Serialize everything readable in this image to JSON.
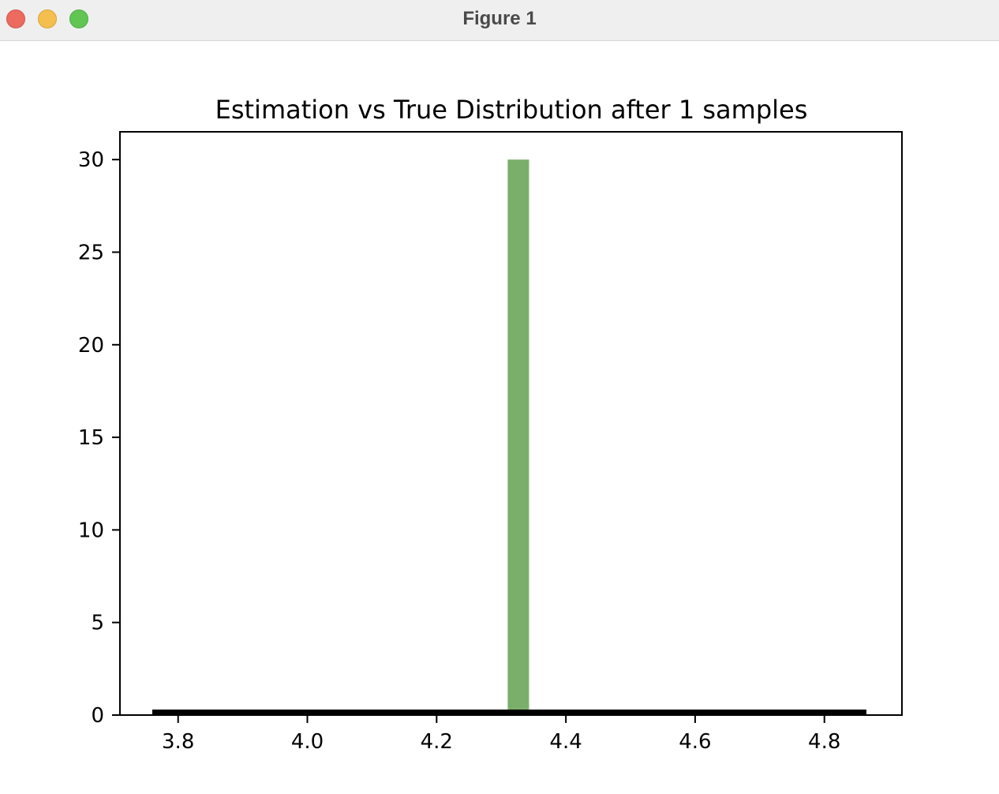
{
  "window": {
    "title": "Figure 1"
  },
  "colors": {
    "bar": "#7aaf6b",
    "line": "#000000"
  },
  "chart_data": {
    "type": "bar",
    "title": "Estimation vs True Distribution after 1 samples",
    "xlabel": "",
    "ylabel": "",
    "xlim": [
      3.71,
      4.92
    ],
    "ylim": [
      0,
      31.5
    ],
    "xticks": [
      3.8,
      4.0,
      4.2,
      4.4,
      4.6,
      4.8
    ],
    "xtick_labels": [
      "3.8",
      "4.0",
      "4.2",
      "4.4",
      "4.6",
      "4.8"
    ],
    "yticks": [
      0,
      5,
      10,
      15,
      20,
      25,
      30
    ],
    "ytick_labels": [
      "0",
      "5",
      "10",
      "15",
      "20",
      "25",
      "30"
    ],
    "grid": false,
    "series": [
      {
        "type": "bar",
        "x_left": 4.31,
        "x_right": 4.343,
        "value": 30
      },
      {
        "type": "line",
        "x": [
          3.76,
          4.865
        ],
        "y": [
          0.15,
          0.15
        ]
      }
    ]
  }
}
